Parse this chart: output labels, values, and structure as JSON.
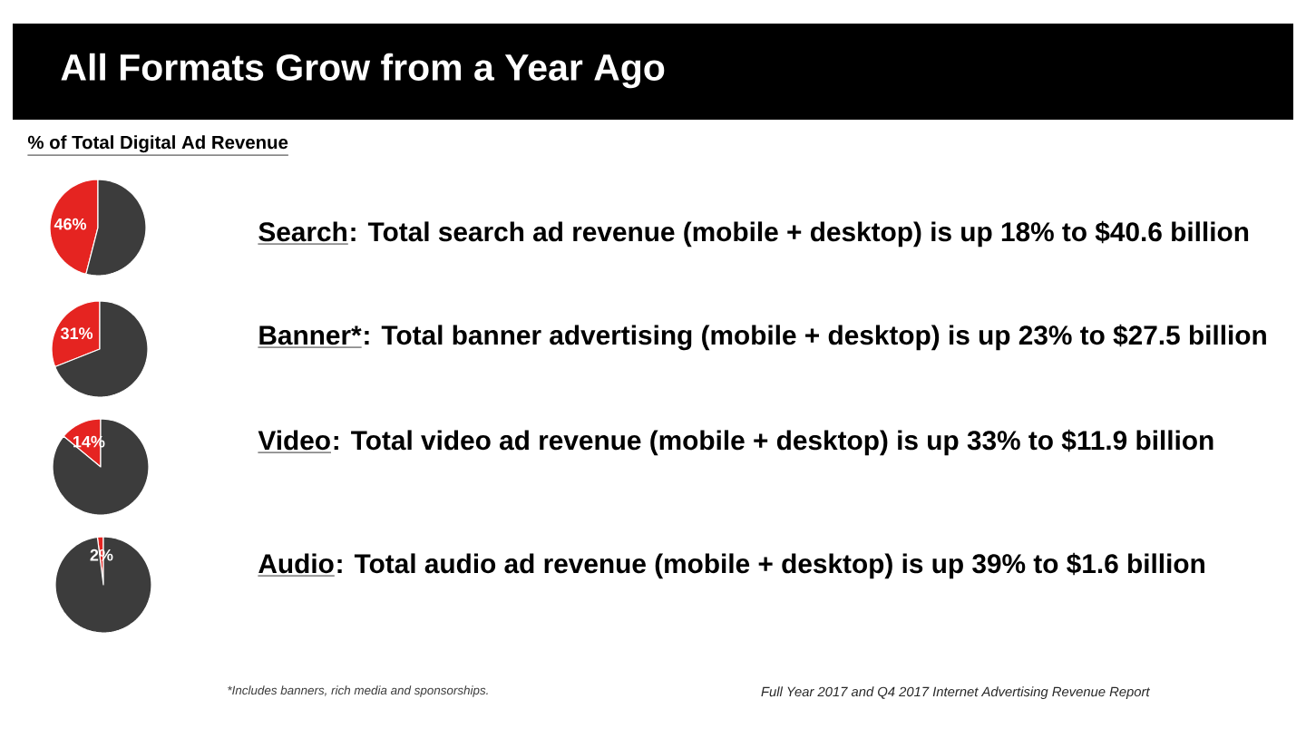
{
  "chart_data": [
    {
      "type": "other",
      "title": "All Formats Grow from a Year Ago",
      "subtitle": "% of Total Digital Ad Revenue"
    },
    {
      "type": "pie",
      "title": "Search",
      "annotations": [
        ": Total search ad revenue (mobile + desktop) is up 18% to $40.6 billion"
      ],
      "categories": [
        null,
        null
      ],
      "values": [
        46,
        54
      ],
      "colors": [
        "#e52421",
        "#3c3c3c"
      ],
      "value_labels": [
        "46%",
        null
      ]
    },
    {
      "type": "pie",
      "title": "Banner*",
      "annotations": [
        ": Total banner advertising (mobile + desktop) is up 23% to $27.5 billion"
      ],
      "categories": [
        null,
        null
      ],
      "values": [
        31,
        69
      ],
      "colors": [
        "#e52421",
        "#3c3c3c"
      ],
      "value_labels": [
        "31%",
        null
      ]
    },
    {
      "type": "pie",
      "title": "Video",
      "annotations": [
        ": Total video ad revenue (mobile + desktop) is up 33% to $11.9 billion"
      ],
      "categories": [
        null,
        null
      ],
      "values": [
        14,
        86
      ],
      "colors": [
        "#e52421",
        "#3c3c3c"
      ],
      "value_labels": [
        "14%",
        null
      ]
    },
    {
      "type": "pie",
      "title": "Audio",
      "annotations": [
        ": Total audio ad revenue (mobile + desktop) is up 39% to $1.6 billion"
      ],
      "categories": [
        null,
        null
      ],
      "values": [
        2,
        98
      ],
      "colors": [
        "#e52421",
        "#3c3c3c"
      ],
      "value_labels": [
        "2%",
        null
      ]
    },
    {
      "type": "other",
      "annotations": [
        "*Includes banners, rich media and sponsorships.",
        "Full Year 2017 and Q4 2017 Internet Advertising Revenue Report"
      ]
    }
  ]
}
